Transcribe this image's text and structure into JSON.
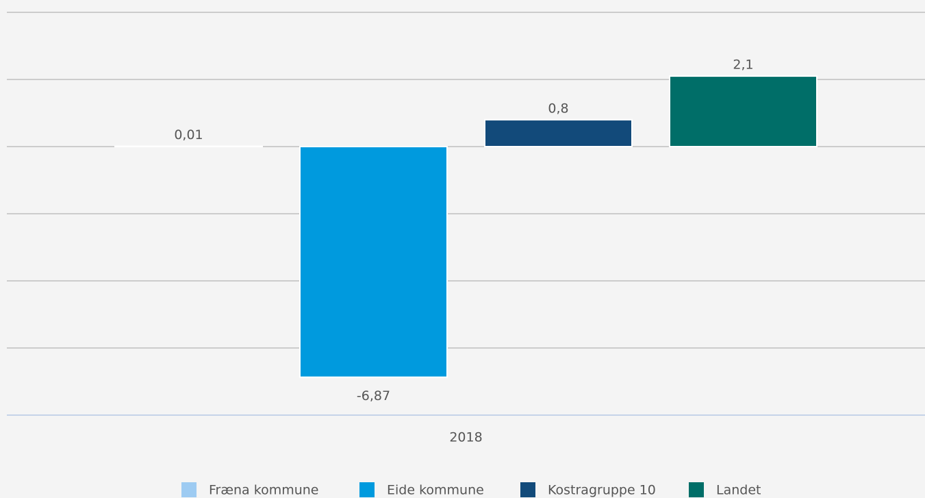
{
  "chart_data": {
    "type": "bar",
    "categories": [
      "2018"
    ],
    "series": [
      {
        "name": "Fræna kommune",
        "color": "#9dcbf2",
        "values": [
          0.01
        ],
        "value_labels": [
          "0,01"
        ]
      },
      {
        "name": "Eide kommune",
        "color": "#009ade",
        "values": [
          -6.87
        ],
        "value_labels": [
          "-6,87"
        ]
      },
      {
        "name": "Kostragruppe 10",
        "color": "#124a7a",
        "values": [
          0.8
        ],
        "value_labels": [
          "0,8"
        ]
      },
      {
        "name": "Landet",
        "color": "#006e68",
        "values": [
          2.1
        ],
        "value_labels": [
          "2,1"
        ]
      }
    ],
    "ylim": [
      -8,
      4
    ],
    "yticks": [
      -8,
      -6,
      -4,
      -2,
      0,
      2,
      4
    ],
    "grid": true,
    "legend": "bottom"
  }
}
